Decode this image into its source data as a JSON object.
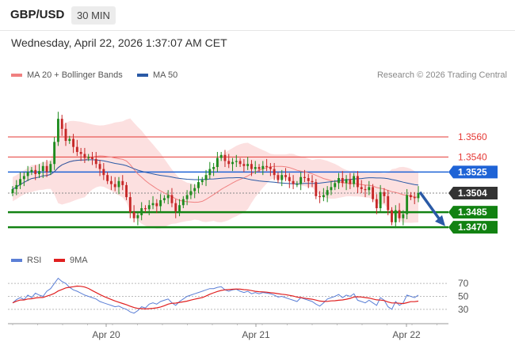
{
  "header": {
    "pair": "GBP/USD",
    "timeframe": "30 MIN",
    "datetime": "Wednesday, April 22, 2026 1:37:07 AM CET"
  },
  "legend": {
    "ma20": {
      "label": "MA 20 + Bollinger Bands",
      "color": "#f08080"
    },
    "ma50": {
      "label": "MA 50",
      "color": "#2a5aa6"
    },
    "credit": "Research © 2026 Trading Central"
  },
  "chart_data": [
    {
      "type": "candlestick",
      "title": "GBP/USD",
      "x_ticks": [
        "Apr 20",
        "Apr 21",
        "Apr 22"
      ],
      "ylim": [
        1.3452,
        1.3612
      ],
      "levels": [
        {
          "label": "1.3560",
          "value": 1.356,
          "kind": "resistance",
          "color": "#e53935"
        },
        {
          "label": "1.3540",
          "value": 1.354,
          "kind": "resistance",
          "color": "#e53935"
        },
        {
          "label": "1.3525",
          "value": 1.3525,
          "kind": "pivot",
          "color": "#1e63d6"
        },
        {
          "label": "1.3504",
          "value": 1.3504,
          "kind": "last-price",
          "color": "#333333"
        },
        {
          "label": "1.3485",
          "value": 1.3485,
          "kind": "support",
          "color": "#128212"
        },
        {
          "label": "1.3470",
          "value": 1.347,
          "kind": "support",
          "color": "#128212"
        }
      ],
      "forecast_arrow": {
        "from": 1.3505,
        "to": 1.3471,
        "direction": "down",
        "color": "#2a5aa6"
      },
      "series_colors": {
        "up": "#1e8c1e",
        "down": "#c62828",
        "ma20": "#f08080",
        "ma50": "#2a5aa6",
        "band": "#fbd6d6"
      },
      "close": [
        1.3508,
        1.3512,
        1.3518,
        1.3521,
        1.3525,
        1.3527,
        1.3523,
        1.3526,
        1.3531,
        1.3525,
        1.3533,
        1.3555,
        1.3578,
        1.3568,
        1.3556,
        1.3558,
        1.355,
        1.3545,
        1.3543,
        1.3539,
        1.354,
        1.3538,
        1.3533,
        1.3528,
        1.3522,
        1.3516,
        1.3513,
        1.351,
        1.3516,
        1.3512,
        1.35,
        1.3485,
        1.3479,
        1.3482,
        1.3489,
        1.3488,
        1.3492,
        1.3494,
        1.3491,
        1.3497,
        1.3499,
        1.3502,
        1.3494,
        1.3486,
        1.3492,
        1.3498,
        1.3502,
        1.3506,
        1.3509,
        1.3515,
        1.3517,
        1.3522,
        1.3528,
        1.353,
        1.3539,
        1.3542,
        1.3536,
        1.3533,
        1.3535,
        1.3536,
        1.3533,
        1.3531,
        1.3533,
        1.3528,
        1.353,
        1.3528,
        1.3531,
        1.353,
        1.3528,
        1.3522,
        1.3517,
        1.3522,
        1.352,
        1.3516,
        1.3513,
        1.3513,
        1.352,
        1.3519,
        1.3516,
        1.3515,
        1.3501,
        1.35,
        1.3502,
        1.3507,
        1.351,
        1.3514,
        1.3519,
        1.3514,
        1.3518,
        1.3513,
        1.3521,
        1.351,
        1.3508,
        1.3507,
        1.351,
        1.3498,
        1.3489,
        1.3505,
        1.3501,
        1.3487,
        1.3475,
        1.3487,
        1.3479,
        1.3483,
        1.3502,
        1.35,
        1.3499,
        1.3504
      ],
      "rsi": {
        "name": "RSI",
        "color": "#5b7fd6",
        "signal_name": "9MA",
        "signal_color": "#e02020",
        "levels": [
          70,
          50,
          30
        ],
        "ylim": [
          20,
          80
        ],
        "values": [
          40,
          45,
          48,
          45,
          52,
          48,
          55,
          52,
          50,
          58,
          62,
          70,
          78,
          73,
          70,
          64,
          60,
          58,
          55,
          52,
          50,
          48,
          46,
          42,
          40,
          38,
          36,
          34,
          35,
          32,
          30,
          26,
          24,
          28,
          34,
          32,
          38,
          40,
          38,
          42,
          44,
          46,
          40,
          36,
          42,
          46,
          50,
          52,
          54,
          56,
          58,
          60,
          62,
          62,
          64,
          65,
          60,
          58,
          60,
          61,
          58,
          56,
          58,
          54,
          56,
          54,
          56,
          55,
          54,
          52,
          49,
          50,
          48,
          46,
          44,
          42,
          48,
          46,
          44,
          42,
          38,
          35,
          40,
          46,
          48,
          50,
          53,
          48,
          52,
          50,
          54,
          44,
          42,
          40,
          44,
          40,
          36,
          48,
          44,
          34,
          30,
          42,
          36,
          40,
          52,
          50,
          48,
          52
        ]
      }
    }
  ],
  "rsi_legend": {
    "rsi_label": "RSI",
    "ma_label": "9MA"
  }
}
